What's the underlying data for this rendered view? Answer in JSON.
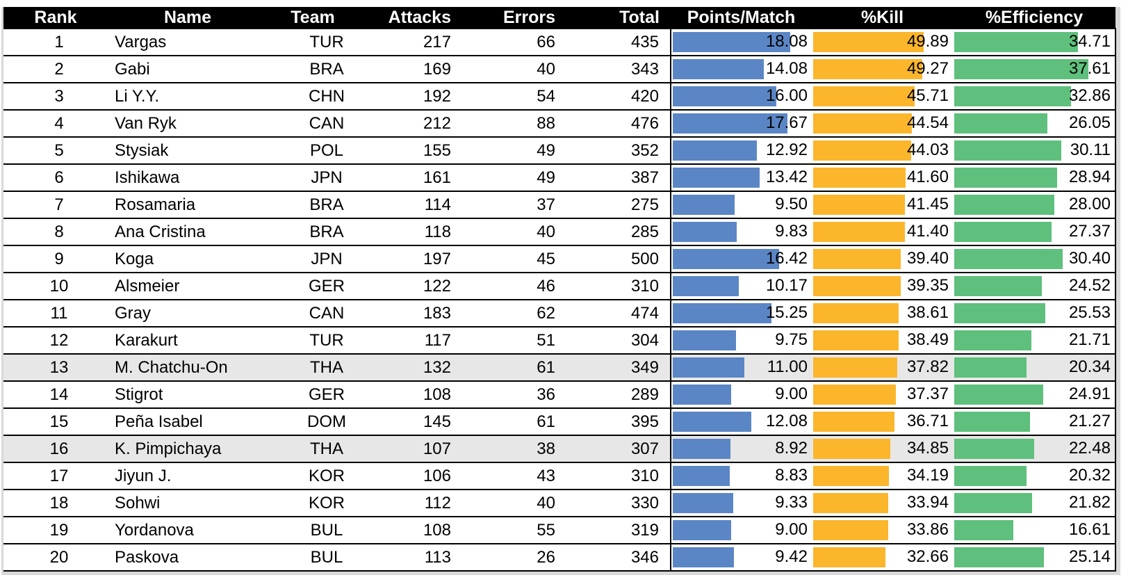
{
  "headers": {
    "rank": "Rank",
    "name": "Name",
    "team": "Team",
    "attacks": "Attacks",
    "errors": "Errors",
    "total": "Total",
    "points_per_match": "Points/Match",
    "kill_pct": "%Kill",
    "efficiency_pct": "%Efficiency"
  },
  "bar_colors": {
    "points_per_match": "#5b86c5",
    "kill_pct": "#fbb62c",
    "efficiency_pct": "#5ec07c"
  },
  "highlight_color": "#e7e7e7",
  "rows": [
    {
      "rank": "1",
      "name": "Vargas",
      "team": "TUR",
      "attacks": "217",
      "errors": "66",
      "total": "435",
      "ppm": "18.08",
      "kill": "49.89",
      "eff": "34.71",
      "highlighted": false
    },
    {
      "rank": "2",
      "name": "Gabi",
      "team": "BRA",
      "attacks": "169",
      "errors": "40",
      "total": "343",
      "ppm": "14.08",
      "kill": "49.27",
      "eff": "37.61",
      "highlighted": false
    },
    {
      "rank": "3",
      "name": "Li Y.Y.",
      "team": "CHN",
      "attacks": "192",
      "errors": "54",
      "total": "420",
      "ppm": "16.00",
      "kill": "45.71",
      "eff": "32.86",
      "highlighted": false
    },
    {
      "rank": "4",
      "name": "Van Ryk",
      "team": "CAN",
      "attacks": "212",
      "errors": "88",
      "total": "476",
      "ppm": "17.67",
      "kill": "44.54",
      "eff": "26.05",
      "highlighted": false
    },
    {
      "rank": "5",
      "name": "Stysiak",
      "team": "POL",
      "attacks": "155",
      "errors": "49",
      "total": "352",
      "ppm": "12.92",
      "kill": "44.03",
      "eff": "30.11",
      "highlighted": false
    },
    {
      "rank": "6",
      "name": "Ishikawa",
      "team": "JPN",
      "attacks": "161",
      "errors": "49",
      "total": "387",
      "ppm": "13.42",
      "kill": "41.60",
      "eff": "28.94",
      "highlighted": false
    },
    {
      "rank": "7",
      "name": "Rosamaria",
      "team": "BRA",
      "attacks": "114",
      "errors": "37",
      "total": "275",
      "ppm": "9.50",
      "kill": "41.45",
      "eff": "28.00",
      "highlighted": false
    },
    {
      "rank": "8",
      "name": "Ana Cristina",
      "team": "BRA",
      "attacks": "118",
      "errors": "40",
      "total": "285",
      "ppm": "9.83",
      "kill": "41.40",
      "eff": "27.37",
      "highlighted": false
    },
    {
      "rank": "9",
      "name": "Koga",
      "team": "JPN",
      "attacks": "197",
      "errors": "45",
      "total": "500",
      "ppm": "16.42",
      "kill": "39.40",
      "eff": "30.40",
      "highlighted": false
    },
    {
      "rank": "10",
      "name": "Alsmeier",
      "team": "GER",
      "attacks": "122",
      "errors": "46",
      "total": "310",
      "ppm": "10.17",
      "kill": "39.35",
      "eff": "24.52",
      "highlighted": false
    },
    {
      "rank": "11",
      "name": "Gray",
      "team": "CAN",
      "attacks": "183",
      "errors": "62",
      "total": "474",
      "ppm": "15.25",
      "kill": "38.61",
      "eff": "25.53",
      "highlighted": false
    },
    {
      "rank": "12",
      "name": "Karakurt",
      "team": "TUR",
      "attacks": "117",
      "errors": "51",
      "total": "304",
      "ppm": "9.75",
      "kill": "38.49",
      "eff": "21.71",
      "highlighted": false
    },
    {
      "rank": "13",
      "name": "M. Chatchu-On",
      "team": "THA",
      "attacks": "132",
      "errors": "61",
      "total": "349",
      "ppm": "11.00",
      "kill": "37.82",
      "eff": "20.34",
      "highlighted": true
    },
    {
      "rank": "14",
      "name": "Stigrot",
      "team": "GER",
      "attacks": "108",
      "errors": "36",
      "total": "289",
      "ppm": "9.00",
      "kill": "37.37",
      "eff": "24.91",
      "highlighted": false
    },
    {
      "rank": "15",
      "name": "Peña Isabel",
      "team": "DOM",
      "attacks": "145",
      "errors": "61",
      "total": "395",
      "ppm": "12.08",
      "kill": "36.71",
      "eff": "21.27",
      "highlighted": false
    },
    {
      "rank": "16",
      "name": "K. Pimpichaya",
      "team": "THA",
      "attacks": "107",
      "errors": "38",
      "total": "307",
      "ppm": "8.92",
      "kill": "34.85",
      "eff": "22.48",
      "highlighted": true
    },
    {
      "rank": "17",
      "name": "Jiyun J.",
      "team": "KOR",
      "attacks": "106",
      "errors": "43",
      "total": "310",
      "ppm": "8.83",
      "kill": "34.19",
      "eff": "20.32",
      "highlighted": false
    },
    {
      "rank": "18",
      "name": "Sohwi",
      "team": "KOR",
      "attacks": "112",
      "errors": "40",
      "total": "330",
      "ppm": "9.33",
      "kill": "33.94",
      "eff": "21.82",
      "highlighted": false
    },
    {
      "rank": "19",
      "name": "Yordanova",
      "team": "BUL",
      "attacks": "108",
      "errors": "55",
      "total": "319",
      "ppm": "9.00",
      "kill": "33.86",
      "eff": "16.61",
      "highlighted": false
    },
    {
      "rank": "20",
      "name": "Paskova",
      "team": "BUL",
      "attacks": "113",
      "errors": "26",
      "total": "346",
      "ppm": "9.42",
      "kill": "32.66",
      "eff": "25.14",
      "highlighted": false
    }
  ]
}
